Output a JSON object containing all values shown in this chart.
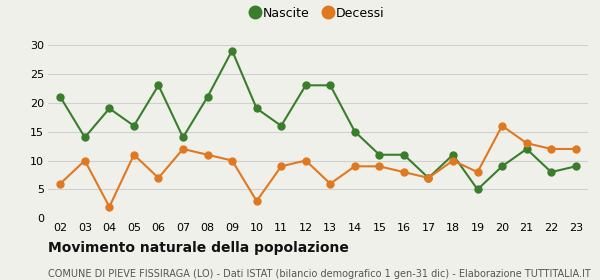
{
  "years": [
    "02",
    "03",
    "04",
    "05",
    "06",
    "07",
    "08",
    "09",
    "10",
    "11",
    "12",
    "13",
    "14",
    "15",
    "16",
    "17",
    "18",
    "19",
    "20",
    "21",
    "22",
    "23"
  ],
  "nascite": [
    21,
    14,
    19,
    16,
    23,
    14,
    21,
    29,
    19,
    16,
    23,
    23,
    15,
    11,
    11,
    7,
    11,
    5,
    9,
    12,
    8,
    9
  ],
  "decessi": [
    6,
    10,
    2,
    11,
    7,
    12,
    11,
    10,
    3,
    9,
    10,
    6,
    9,
    9,
    8,
    7,
    10,
    8,
    16,
    13,
    12,
    12
  ],
  "nascite_color": "#3a7d2c",
  "decessi_color": "#e07820",
  "background_color": "#f0f0eb",
  "grid_color": "#d0d0d0",
  "ylim": [
    0,
    30
  ],
  "yticks": [
    0,
    5,
    10,
    15,
    20,
    25,
    30
  ],
  "title": "Movimento naturale della popolazione",
  "subtitle": "COMUNE DI PIEVE FISSIRAGA (LO) - Dati ISTAT (bilancio demografico 1 gen-31 dic) - Elaborazione TUTTITALIA.IT",
  "legend_nascite": "Nascite",
  "legend_decessi": "Decessi",
  "title_fontsize": 10,
  "subtitle_fontsize": 7,
  "legend_fontsize": 9,
  "axis_fontsize": 8,
  "marker_size": 5,
  "line_width": 1.5
}
